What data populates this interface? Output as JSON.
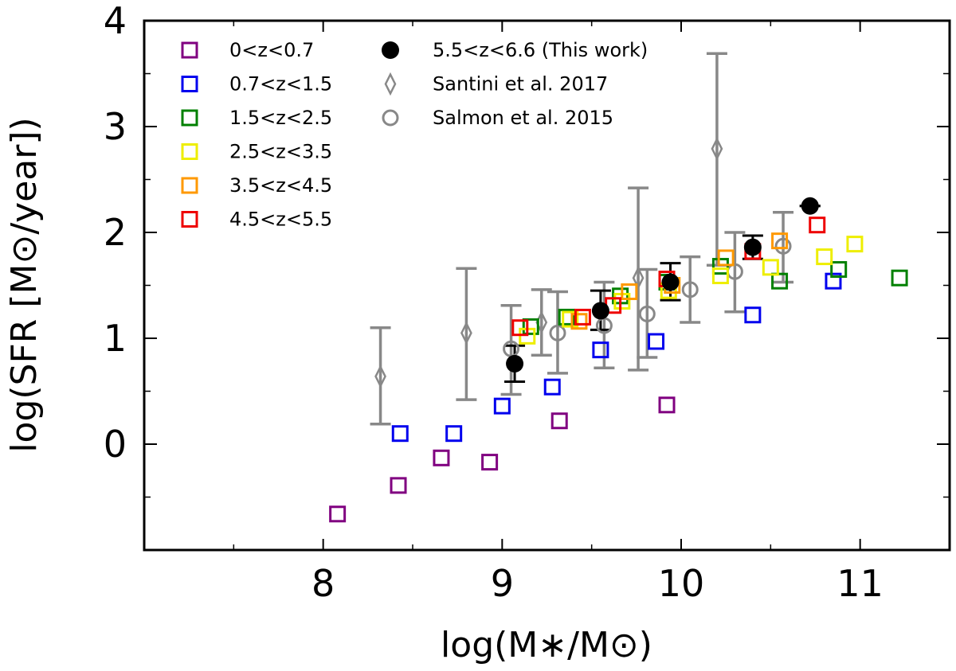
{
  "chart_data": {
    "type": "scatter",
    "xlabel": "log(M∗/M⊙)",
    "ylabel": "log(SFR [M⊙/year])",
    "xlim": [
      7.0,
      11.5
    ],
    "ylim": [
      -1.0,
      4.0
    ],
    "xticks": [
      8,
      9,
      10,
      11
    ],
    "yticks": [
      0,
      1,
      2,
      3,
      4
    ],
    "grid": false,
    "legend_position": "top-left",
    "series": [
      {
        "name": "0<z<0.7",
        "marker": "square",
        "color": "#800080",
        "points": [
          [
            8.08,
            -0.66
          ],
          [
            8.42,
            -0.39
          ],
          [
            8.66,
            -0.13
          ],
          [
            8.93,
            -0.17
          ],
          [
            9.32,
            0.22
          ],
          [
            9.92,
            0.37
          ]
        ]
      },
      {
        "name": "0.7<z<1.5",
        "marker": "square",
        "color": "#0000ee",
        "points": [
          [
            8.43,
            0.1
          ],
          [
            8.73,
            0.1
          ],
          [
            9.0,
            0.36
          ],
          [
            9.28,
            0.54
          ],
          [
            9.55,
            0.89
          ],
          [
            9.86,
            0.97
          ],
          [
            10.4,
            1.22
          ],
          [
            10.85,
            1.54
          ]
        ]
      },
      {
        "name": "1.5<z<2.5",
        "marker": "square",
        "color": "#008000",
        "points": [
          [
            9.16,
            1.11
          ],
          [
            9.36,
            1.2
          ],
          [
            9.66,
            1.4
          ],
          [
            9.92,
            1.53
          ],
          [
            10.22,
            1.68
          ],
          [
            10.55,
            1.54
          ],
          [
            10.88,
            1.65
          ],
          [
            11.22,
            1.57
          ]
        ]
      },
      {
        "name": "2.5<z<3.5",
        "marker": "square",
        "color": "#eeee00",
        "points": [
          [
            9.14,
            1.02
          ],
          [
            9.38,
            1.18
          ],
          [
            9.67,
            1.35
          ],
          [
            9.93,
            1.45
          ],
          [
            10.22,
            1.59
          ],
          [
            10.5,
            1.67
          ],
          [
            10.8,
            1.77
          ],
          [
            10.97,
            1.89
          ]
        ]
      },
      {
        "name": "3.5<z<4.5",
        "marker": "square",
        "color": "#ff9900",
        "points": [
          [
            9.43,
            1.16
          ],
          [
            9.71,
            1.44
          ],
          [
            9.95,
            1.5
          ],
          [
            10.25,
            1.76
          ],
          [
            10.55,
            1.92
          ]
        ]
      },
      {
        "name": "4.5<z<5.5",
        "marker": "square",
        "color": "#ee0000",
        "points": [
          [
            9.1,
            1.1
          ],
          [
            9.45,
            1.2
          ],
          [
            9.62,
            1.31
          ],
          [
            9.92,
            1.56
          ],
          [
            10.4,
            1.82
          ],
          [
            10.76,
            2.07
          ]
        ]
      },
      {
        "name": "5.5<z<6.6 (This work)",
        "marker": "filled-circle",
        "color": "#000000",
        "points": [
          [
            9.07,
            0.76,
            0.59,
            0.93
          ],
          [
            9.55,
            1.26,
            1.08,
            1.45
          ],
          [
            9.94,
            1.53,
            1.36,
            1.71
          ],
          [
            10.4,
            1.86,
            1.75,
            1.97
          ],
          [
            10.72,
            2.25,
            2.25,
            2.25
          ]
        ]
      },
      {
        "name": "Santini et al. 2017",
        "marker": "diamond",
        "color": "#888888",
        "points": [
          [
            8.32,
            0.64,
            0.19,
            1.1
          ],
          [
            8.8,
            1.05,
            0.42,
            1.66
          ],
          [
            9.22,
            1.15,
            0.84,
            1.46
          ],
          [
            9.76,
            1.57,
            0.7,
            2.42
          ],
          [
            10.2,
            2.79,
            1.69,
            3.69
          ]
        ]
      },
      {
        "name": "Salmon et al. 2015",
        "marker": "open-circle",
        "color": "#888888",
        "points": [
          [
            9.05,
            0.9,
            0.47,
            1.31
          ],
          [
            9.31,
            1.05,
            0.67,
            1.44
          ],
          [
            9.57,
            1.12,
            0.72,
            1.53
          ],
          [
            9.81,
            1.23,
            0.82,
            1.65
          ],
          [
            10.05,
            1.46,
            1.15,
            1.77
          ],
          [
            10.3,
            1.63,
            1.25,
            2.0
          ],
          [
            10.57,
            1.87,
            1.53,
            2.19
          ]
        ]
      }
    ]
  }
}
